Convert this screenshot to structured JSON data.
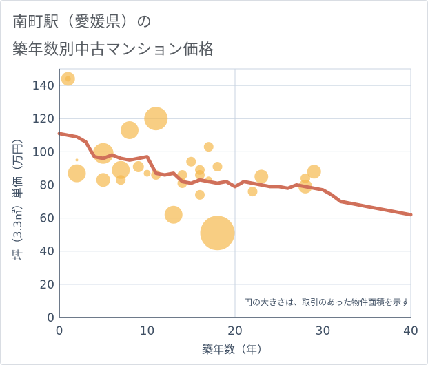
{
  "title_line1": "南町駅（愛媛県）の",
  "title_line2": "築年数別中古マンション価格",
  "chart_data": {
    "type": "scatter",
    "xlabel": "築年数（年）",
    "ylabel": "坪（3.3㎡）単価（万円）",
    "xlim": [
      0,
      40
    ],
    "ylim": [
      0,
      150
    ],
    "xticks": [
      0,
      10,
      20,
      30,
      40
    ],
    "yticks": [
      0,
      20,
      40,
      60,
      80,
      100,
      120,
      140
    ],
    "grid": true,
    "note": "円の大きさは、取引のあった物件面積を示す",
    "bubbles": [
      {
        "x": 1,
        "y": 144,
        "size": 10
      },
      {
        "x": 1,
        "y": 144,
        "size": 4
      },
      {
        "x": 2,
        "y": 95,
        "size": 2
      },
      {
        "x": 2,
        "y": 87,
        "size": 13
      },
      {
        "x": 5,
        "y": 99,
        "size": 15
      },
      {
        "x": 5,
        "y": 83,
        "size": 10
      },
      {
        "x": 7,
        "y": 89,
        "size": 13
      },
      {
        "x": 7,
        "y": 83,
        "size": 7
      },
      {
        "x": 8,
        "y": 113,
        "size": 13
      },
      {
        "x": 9,
        "y": 91,
        "size": 8
      },
      {
        "x": 10,
        "y": 87,
        "size": 5
      },
      {
        "x": 11,
        "y": 120,
        "size": 17
      },
      {
        "x": 11,
        "y": 86,
        "size": 7
      },
      {
        "x": 13,
        "y": 62,
        "size": 13
      },
      {
        "x": 14,
        "y": 86,
        "size": 7
      },
      {
        "x": 14,
        "y": 81,
        "size": 7
      },
      {
        "x": 15,
        "y": 94,
        "size": 7
      },
      {
        "x": 16,
        "y": 89,
        "size": 7
      },
      {
        "x": 16,
        "y": 86,
        "size": 7
      },
      {
        "x": 16,
        "y": 74,
        "size": 7
      },
      {
        "x": 17,
        "y": 103,
        "size": 7
      },
      {
        "x": 17,
        "y": 83,
        "size": 5
      },
      {
        "x": 18,
        "y": 91,
        "size": 7
      },
      {
        "x": 18,
        "y": 51,
        "size": 25
      },
      {
        "x": 22,
        "y": 76,
        "size": 7
      },
      {
        "x": 23,
        "y": 85,
        "size": 10
      },
      {
        "x": 28,
        "y": 84,
        "size": 7
      },
      {
        "x": 28,
        "y": 79,
        "size": 10
      },
      {
        "x": 29,
        "y": 88,
        "size": 10
      }
    ],
    "trend": {
      "x": [
        0,
        2,
        3,
        4,
        5,
        6,
        7,
        8,
        9,
        10,
        11,
        12,
        13,
        14,
        15,
        16,
        17,
        18,
        19,
        20,
        21,
        22,
        23,
        24,
        25,
        26,
        27,
        28,
        29,
        30,
        31,
        32,
        33,
        34,
        35,
        36,
        37,
        38,
        39,
        40
      ],
      "y": [
        111,
        109,
        106,
        97,
        96,
        98,
        96,
        95,
        96,
        97,
        87,
        86,
        87,
        82,
        81,
        83,
        82,
        81,
        82,
        79,
        82,
        81,
        80,
        79,
        79,
        78,
        80,
        79,
        78,
        77,
        74,
        70,
        69,
        68,
        67,
        66,
        65,
        64,
        63,
        62
      ]
    },
    "colors": {
      "bubble": "#f5b94e",
      "trend": "#d0705a",
      "grid": "#c8d3e0",
      "axis": "#3f4f63"
    }
  }
}
